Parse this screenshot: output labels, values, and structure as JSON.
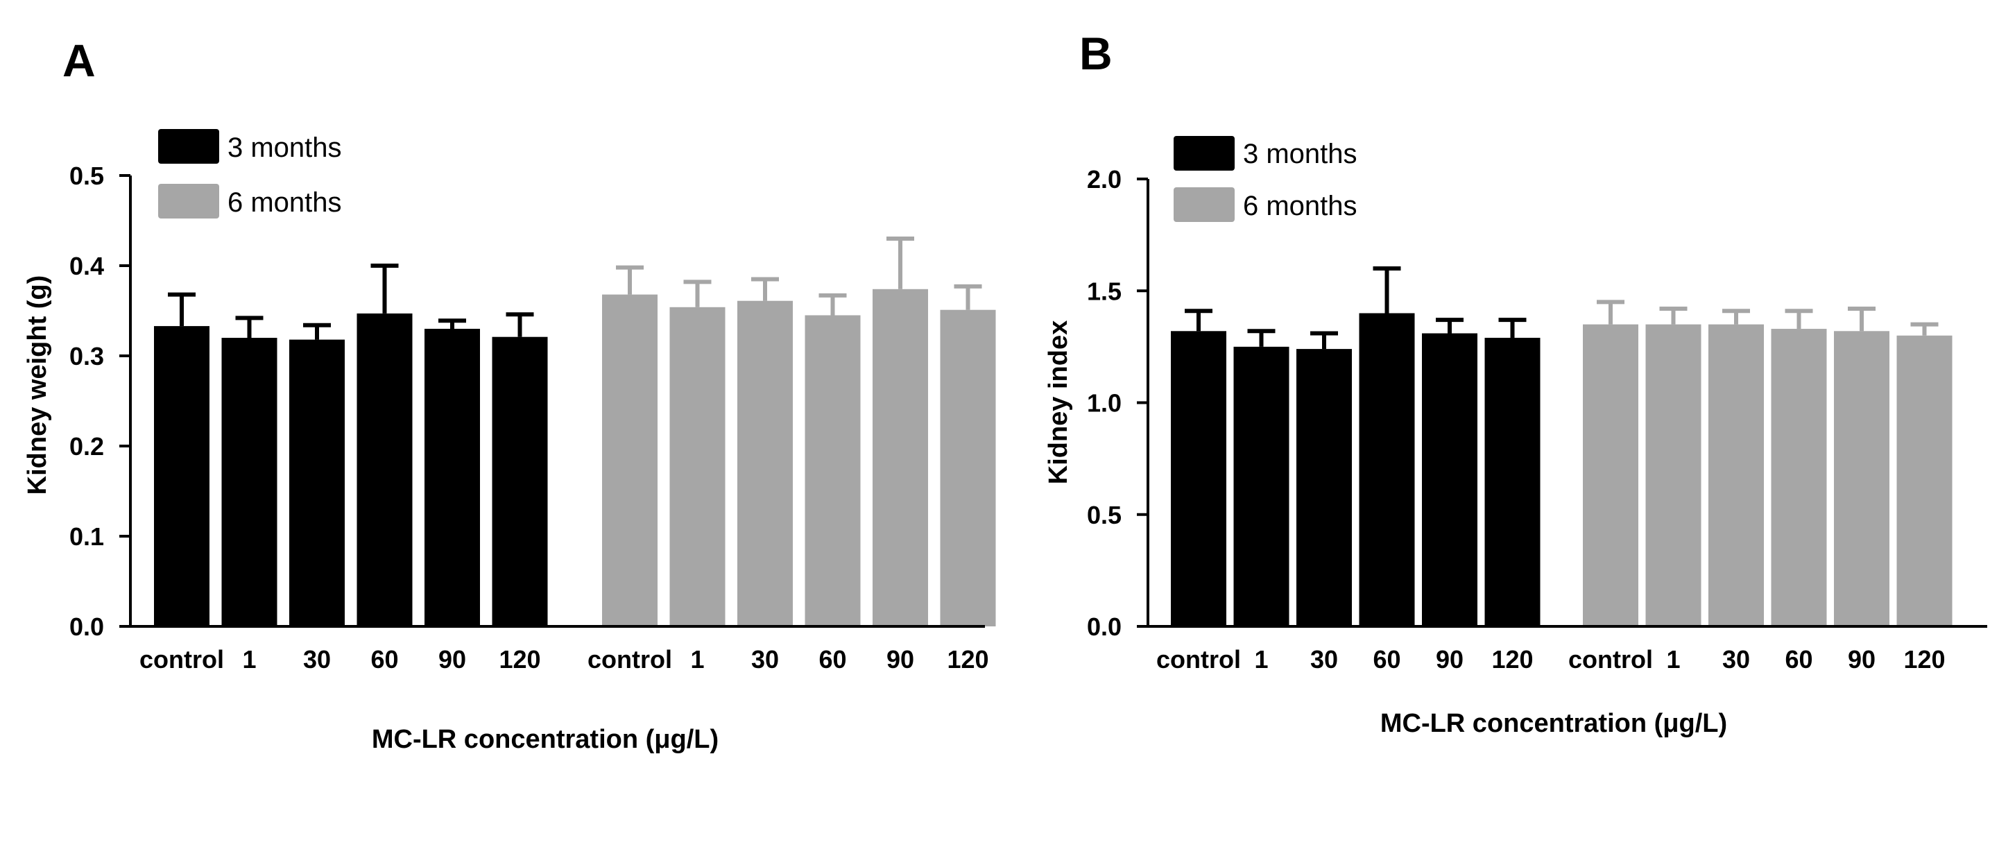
{
  "chart_data": [
    {
      "type": "bar",
      "panel_label": "A",
      "ylabel": "Kidney weight (g)",
      "xlabel": "MC-LR concentration (μg/L)",
      "ylim": [
        0,
        0.5
      ],
      "yticks": [
        "0.0",
        "0.1",
        "0.2",
        "0.3",
        "0.4",
        "0.5"
      ],
      "yticks_values": [
        0.0,
        0.1,
        0.2,
        0.3,
        0.4,
        0.5
      ],
      "categories": [
        "control",
        "1",
        "30",
        "60",
        "90",
        "120"
      ],
      "legend_position": "top-left",
      "series": [
        {
          "name": "3 months",
          "color": "#000000",
          "values": [
            0.333,
            0.32,
            0.318,
            0.347,
            0.33,
            0.321
          ],
          "errors": [
            0.035,
            0.022,
            0.016,
            0.053,
            0.009,
            0.025
          ]
        },
        {
          "name": "6 months",
          "color": "#a6a6a6",
          "values": [
            0.368,
            0.354,
            0.361,
            0.345,
            0.374,
            0.351
          ],
          "errors": [
            0.03,
            0.028,
            0.024,
            0.022,
            0.056,
            0.026
          ]
        }
      ]
    },
    {
      "type": "bar",
      "panel_label": "B",
      "ylabel": "Kidney index",
      "xlabel": "MC-LR concentration (μg/L)",
      "ylim": [
        0,
        2.0
      ],
      "yticks": [
        "0.0",
        "0.5",
        "1.0",
        "1.5",
        "2.0"
      ],
      "yticks_values": [
        0.0,
        0.5,
        1.0,
        1.5,
        2.0
      ],
      "categories": [
        "control",
        "1",
        "30",
        "60",
        "90",
        "120"
      ],
      "legend_position": "top-left",
      "series": [
        {
          "name": "3 months",
          "color": "#000000",
          "values": [
            1.32,
            1.25,
            1.24,
            1.4,
            1.31,
            1.29
          ],
          "errors": [
            0.09,
            0.07,
            0.07,
            0.2,
            0.06,
            0.08
          ]
        },
        {
          "name": "6 months",
          "color": "#a6a6a6",
          "values": [
            1.35,
            1.35,
            1.35,
            1.33,
            1.32,
            1.3
          ],
          "errors": [
            0.1,
            0.07,
            0.06,
            0.08,
            0.1,
            0.05
          ]
        }
      ]
    }
  ]
}
